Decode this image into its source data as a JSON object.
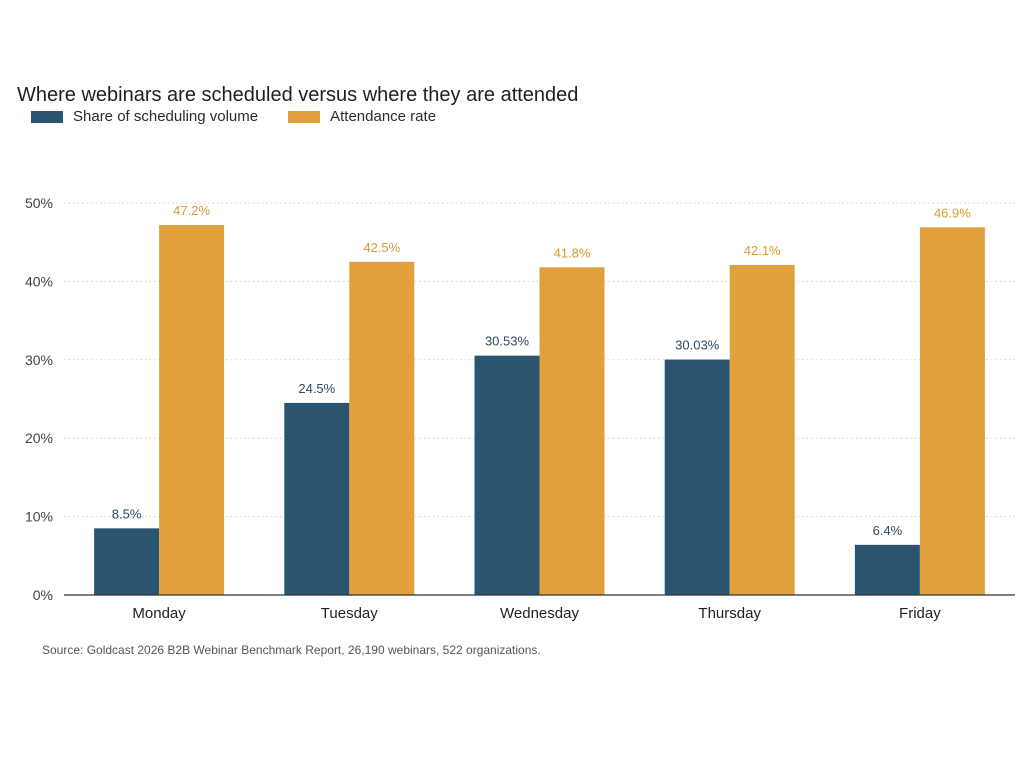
{
  "chart_data": {
    "type": "bar",
    "title": "Where webinars are scheduled versus where they are attended",
    "categories": [
      "Monday",
      "Tuesday",
      "Wednesday",
      "Thursday",
      "Friday"
    ],
    "series": [
      {
        "name": "Share of scheduling volume",
        "values": [
          8.5,
          24.5,
          30.53,
          30.03,
          6.4
        ],
        "labels": [
          "8.5%",
          "24.5%",
          "30.53%",
          "30.03%",
          "6.4%"
        ],
        "color": "#2b5470"
      },
      {
        "name": "Attendance rate",
        "values": [
          47.2,
          42.5,
          41.8,
          42.1,
          46.9
        ],
        "labels": [
          "47.2%",
          "42.5%",
          "41.8%",
          "42.1%",
          "46.9%"
        ],
        "color": "#e0a03e"
      }
    ],
    "y_ticks": [
      "0%",
      "10%",
      "20%",
      "30%",
      "40%",
      "50%"
    ],
    "y_tick_values": [
      0,
      10,
      20,
      30,
      40,
      50
    ],
    "ylim": [
      0,
      50
    ],
    "xlabel": "",
    "ylabel": "",
    "grid": true,
    "legend_position": "top-left",
    "source": "Source: Goldcast 2026 B2B Webinar Benchmark Report, 26,190 webinars, 522 organizations."
  }
}
